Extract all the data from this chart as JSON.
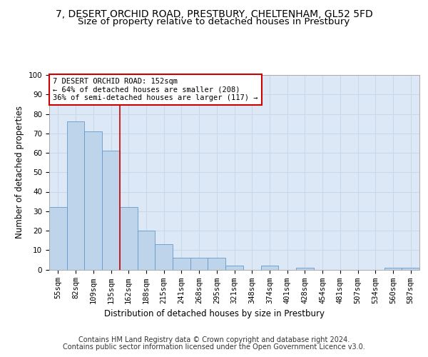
{
  "title1": "7, DESERT ORCHID ROAD, PRESTBURY, CHELTENHAM, GL52 5FD",
  "title2": "Size of property relative to detached houses in Prestbury",
  "xlabel": "Distribution of detached houses by size in Prestbury",
  "ylabel": "Number of detached properties",
  "categories": [
    "55sqm",
    "82sqm",
    "109sqm",
    "135sqm",
    "162sqm",
    "188sqm",
    "215sqm",
    "241sqm",
    "268sqm",
    "295sqm",
    "321sqm",
    "348sqm",
    "374sqm",
    "401sqm",
    "428sqm",
    "454sqm",
    "481sqm",
    "507sqm",
    "534sqm",
    "560sqm",
    "587sqm"
  ],
  "values": [
    32,
    76,
    71,
    61,
    32,
    20,
    13,
    6,
    6,
    6,
    2,
    0,
    2,
    0,
    1,
    0,
    0,
    0,
    0,
    1,
    1
  ],
  "bar_color": "#bed4eb",
  "bar_edge_color": "#6699cc",
  "vline_x_index": 3.5,
  "vline_color": "#cc0000",
  "annotation_line1": "7 DESERT ORCHID ROAD: 152sqm",
  "annotation_line2": "← 64% of detached houses are smaller (208)",
  "annotation_line3": "36% of semi-detached houses are larger (117) →",
  "annotation_box_color": "#ffffff",
  "annotation_box_edge": "#cc0000",
  "ylim": [
    0,
    100
  ],
  "yticks": [
    0,
    10,
    20,
    30,
    40,
    50,
    60,
    70,
    80,
    90,
    100
  ],
  "grid_color": "#c8d8e8",
  "background_color": "#dce8f5",
  "footer1": "Contains HM Land Registry data © Crown copyright and database right 2024.",
  "footer2": "Contains public sector information licensed under the Open Government Licence v3.0.",
  "title_fontsize": 10,
  "subtitle_fontsize": 9.5,
  "ylabel_fontsize": 8.5,
  "xlabel_fontsize": 8.5,
  "tick_fontsize": 7.5,
  "annotation_fontsize": 7.5,
  "footer_fontsize": 7
}
